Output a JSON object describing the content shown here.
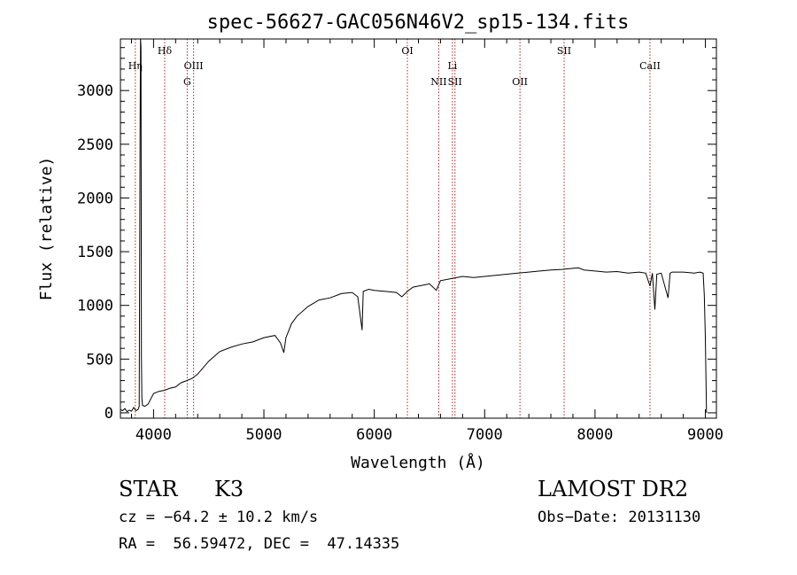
{
  "chart_data": {
    "type": "line",
    "title": "spec-56627-GAC056N46V2_sp15-134.fits",
    "xlabel": "Wavelength (Å)",
    "ylabel": "Flux (relative)",
    "xlim": [
      3700,
      9100
    ],
    "ylim": [
      -50,
      3480
    ],
    "xticks": [
      4000,
      5000,
      6000,
      7000,
      8000,
      9000
    ],
    "yticks": [
      0,
      500,
      1000,
      1500,
      2000,
      2500,
      3000
    ],
    "grid": false,
    "line_color": "#000000",
    "marker_color": "#b22222",
    "lines": [
      {
        "label": "Hη",
        "x": 3835,
        "row": 1
      },
      {
        "label": "Hδ",
        "x": 4101,
        "row": 0
      },
      {
        "label": "OIII",
        "x": 4363,
        "row": 1
      },
      {
        "label": "G",
        "x": 4305,
        "row": 2
      },
      {
        "label": "OI",
        "x": 6300,
        "row": 0
      },
      {
        "label": "NII",
        "x": 6584,
        "row": 2
      },
      {
        "label": "Li",
        "x": 6708,
        "row": 1
      },
      {
        "label": "SII",
        "x": 6731,
        "row": 2
      },
      {
        "label": "OII",
        "x": 7320,
        "row": 2
      },
      {
        "label": "SII",
        "x": 7720,
        "row": 0
      },
      {
        "label": "CaII",
        "x": 8498,
        "row": 1
      }
    ],
    "series": [
      {
        "x": [
          3700,
          3720,
          3740,
          3760,
          3780,
          3800,
          3820,
          3840,
          3860,
          3870,
          3878,
          3882,
          3886,
          3890,
          3894,
          3900,
          3920,
          3950,
          4000,
          4050,
          4100,
          4150,
          4200,
          4250,
          4300,
          4350,
          4400,
          4500,
          4600,
          4700,
          4800,
          4900,
          5000,
          5100,
          5150,
          5180,
          5200,
          5250,
          5300,
          5400,
          5500,
          5600,
          5700,
          5800,
          5850,
          5890,
          5896,
          5900,
          5950,
          6000,
          6100,
          6200,
          6250,
          6300,
          6350,
          6400,
          6500,
          6562,
          6600,
          6700,
          6800,
          6900,
          7000,
          7100,
          7200,
          7300,
          7400,
          7500,
          7600,
          7700,
          7800,
          7850,
          7900,
          8000,
          8100,
          8200,
          8300,
          8400,
          8460,
          8498,
          8520,
          8542,
          8560,
          8600,
          8662,
          8680,
          8700,
          8800,
          8900,
          8950,
          8980,
          8990,
          9000,
          9010
        ],
        "y": [
          30,
          20,
          40,
          10,
          25,
          15,
          50,
          20,
          30,
          60,
          2650,
          3480,
          3400,
          520,
          140,
          70,
          60,
          80,
          180,
          200,
          210,
          230,
          240,
          280,
          300,
          320,
          360,
          480,
          570,
          610,
          640,
          660,
          700,
          720,
          650,
          560,
          700,
          830,
          900,
          990,
          1050,
          1070,
          1110,
          1120,
          1080,
          770,
          1000,
          1130,
          1150,
          1140,
          1130,
          1120,
          1080,
          1130,
          1170,
          1180,
          1200,
          1140,
          1230,
          1250,
          1270,
          1260,
          1270,
          1280,
          1290,
          1300,
          1310,
          1320,
          1330,
          1335,
          1345,
          1350,
          1330,
          1320,
          1310,
          1315,
          1300,
          1310,
          1300,
          1180,
          1300,
          960,
          1290,
          1300,
          1070,
          1300,
          1310,
          1310,
          1300,
          1310,
          1300,
          1100,
          700,
          0
        ]
      }
    ]
  },
  "info": {
    "class": "STAR",
    "subclass": "K3",
    "survey": "LAMOST DR2",
    "cz": "cz = −64.2 ± 10.2 km/s",
    "obs_date": "Obs−Date: 20131130",
    "radec": "RA =  56.59472, DEC =  47.14335"
  }
}
